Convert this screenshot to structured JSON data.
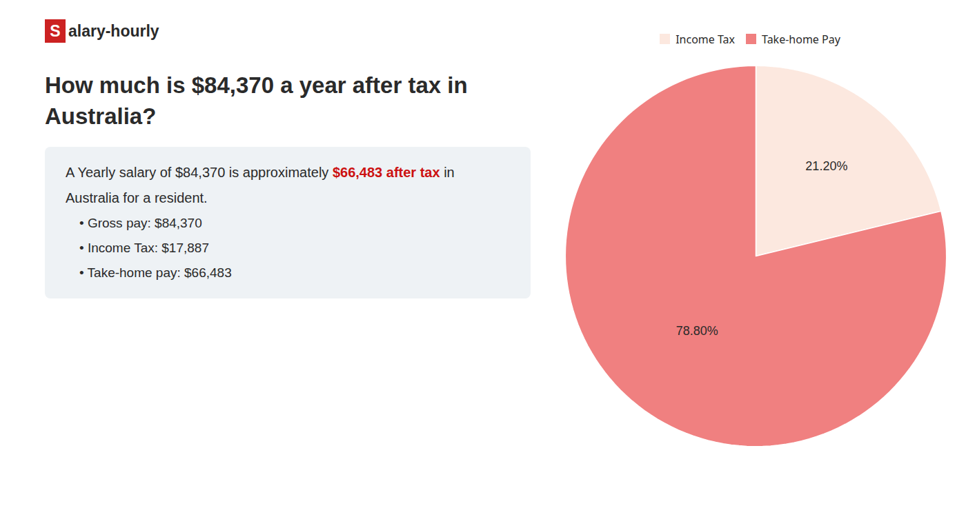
{
  "chart_data": {
    "type": "pie",
    "title": "How much is $84,370 a year after tax in\nAustralia?",
    "annotations": [
      [
        {
          "text": "S"
        },
        {
          "text": "alary-hourly"
        }
      ],
      [
        {
          "text": "A Yearly salary of $84,370 is approximately "
        },
        {
          "text": "$66,483 after tax",
          "color": "#cc1111"
        },
        {
          "text": " in"
        }
      ],
      [
        {
          "text": "Australia for a resident."
        }
      ],
      [
        {
          "text": "•  Gross pay: $84,370"
        }
      ],
      [
        {
          "text": "•  Income Tax: $17,887"
        }
      ],
      [
        {
          "text": "•  Take-home pay: $66,483"
        }
      ]
    ],
    "categories": [
      "Income Tax",
      "Take-home Pay"
    ],
    "values": [
      21.2,
      78.8
    ],
    "value_labels": [
      "21.20%",
      "78.80%"
    ],
    "colors": [
      "#fce8df",
      "#f08080"
    ],
    "data_labels": true,
    "legend": "top"
  }
}
